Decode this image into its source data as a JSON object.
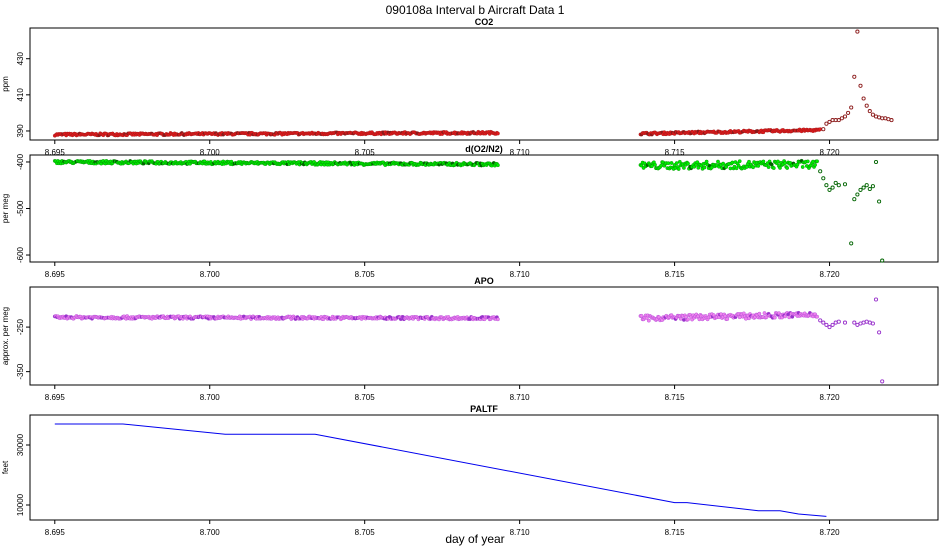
{
  "title": "090108a   Interval b Aircraft Data 1",
  "xlabel": "day of year",
  "x_ticks": [
    "8.695",
    "8.700",
    "8.705",
    "8.710",
    "8.715",
    "8.720"
  ],
  "chart_data": [
    {
      "type": "scatter",
      "title": "CO2",
      "ylabel": "ppm",
      "y_ticks": [
        "390",
        "410",
        "430"
      ],
      "xlim": [
        8.6942,
        8.7235
      ],
      "ylim": [
        385,
        447
      ],
      "colors": {
        "main": "#e41a1c",
        "dark": "#8b1a1a"
      },
      "segments": [
        {
          "x_start": 8.695,
          "x_end": 8.7093,
          "y_start": 388,
          "y_end": 389,
          "noise": 0.6
        },
        {
          "x_start": 8.7139,
          "x_end": 8.7197,
          "y_start": 388.5,
          "y_end": 390.5,
          "noise": 0.6
        }
      ],
      "points": [
        {
          "x": 8.7198,
          "y": 391
        },
        {
          "x": 8.7199,
          "y": 394
        },
        {
          "x": 8.72,
          "y": 395
        },
        {
          "x": 8.7201,
          "y": 396
        },
        {
          "x": 8.7202,
          "y": 396
        },
        {
          "x": 8.7203,
          "y": 396
        },
        {
          "x": 8.7204,
          "y": 397
        },
        {
          "x": 8.7205,
          "y": 398
        },
        {
          "x": 8.7206,
          "y": 400
        },
        {
          "x": 8.7207,
          "y": 403
        },
        {
          "x": 8.7208,
          "y": 420
        },
        {
          "x": 8.7209,
          "y": 445
        },
        {
          "x": 8.721,
          "y": 415
        },
        {
          "x": 8.7211,
          "y": 408
        },
        {
          "x": 8.7212,
          "y": 404
        },
        {
          "x": 8.7213,
          "y": 401
        },
        {
          "x": 8.7214,
          "y": 399
        },
        {
          "x": 8.7215,
          "y": 398
        },
        {
          "x": 8.7216,
          "y": 397.5
        },
        {
          "x": 8.7217,
          "y": 397
        },
        {
          "x": 8.7218,
          "y": 397
        },
        {
          "x": 8.7219,
          "y": 396.5
        },
        {
          "x": 8.722,
          "y": 396
        }
      ]
    },
    {
      "type": "scatter",
      "title": "d(O2/N2)",
      "ylabel": "per meg",
      "y_ticks": [
        "-600",
        "-500",
        "-400"
      ],
      "xlim": [
        8.6942,
        8.7235
      ],
      "ylim": [
        -615,
        -385
      ],
      "colors": {
        "main": "#00ee00",
        "dark": "#006400"
      },
      "segments": [
        {
          "x_start": 8.695,
          "x_end": 8.7093,
          "y_start": -400,
          "y_end": -405,
          "noise": 3
        },
        {
          "x_start": 8.7139,
          "x_end": 8.7196,
          "y_start": -408,
          "y_end": -405,
          "noise": 8
        }
      ],
      "points": [
        {
          "x": 8.7197,
          "y": -420
        },
        {
          "x": 8.7198,
          "y": -435
        },
        {
          "x": 8.7199,
          "y": -450
        },
        {
          "x": 8.72,
          "y": -460
        },
        {
          "x": 8.7201,
          "y": -455
        },
        {
          "x": 8.7202,
          "y": -445
        },
        {
          "x": 8.7203,
          "y": -450
        },
        {
          "x": 8.7205,
          "y": -448
        },
        {
          "x": 8.7207,
          "y": -575
        },
        {
          "x": 8.7208,
          "y": -480
        },
        {
          "x": 8.7209,
          "y": -470
        },
        {
          "x": 8.721,
          "y": -460
        },
        {
          "x": 8.7211,
          "y": -455
        },
        {
          "x": 8.7212,
          "y": -450
        },
        {
          "x": 8.7213,
          "y": -458
        },
        {
          "x": 8.7214,
          "y": -452
        },
        {
          "x": 8.7215,
          "y": -400
        },
        {
          "x": 8.7216,
          "y": -485
        },
        {
          "x": 8.7217,
          "y": -612
        }
      ]
    },
    {
      "type": "scatter",
      "title": "APO",
      "ylabel": "approx. per meg",
      "y_ticks": [
        "-350",
        "-250"
      ],
      "xlim": [
        8.6942,
        8.7235
      ],
      "ylim": [
        -380,
        -160
      ],
      "colors": {
        "main": "#ee82ee",
        "dark": "#9932cc"
      },
      "segments": [
        {
          "x_start": 8.695,
          "x_end": 8.7093,
          "y_start": -228,
          "y_end": -230,
          "noise": 3
        },
        {
          "x_start": 8.7139,
          "x_end": 8.7196,
          "y_start": -230,
          "y_end": -222,
          "noise": 6
        }
      ],
      "points": [
        {
          "x": 8.7197,
          "y": -235
        },
        {
          "x": 8.7198,
          "y": -240
        },
        {
          "x": 8.7199,
          "y": -245
        },
        {
          "x": 8.72,
          "y": -250
        },
        {
          "x": 8.7201,
          "y": -245
        },
        {
          "x": 8.7202,
          "y": -240
        },
        {
          "x": 8.7203,
          "y": -238
        },
        {
          "x": 8.7205,
          "y": -240
        },
        {
          "x": 8.7208,
          "y": -240
        },
        {
          "x": 8.7209,
          "y": -245
        },
        {
          "x": 8.721,
          "y": -242
        },
        {
          "x": 8.7211,
          "y": -240
        },
        {
          "x": 8.7212,
          "y": -238
        },
        {
          "x": 8.7213,
          "y": -240
        },
        {
          "x": 8.7214,
          "y": -242
        },
        {
          "x": 8.7215,
          "y": -188
        },
        {
          "x": 8.7216,
          "y": -262
        },
        {
          "x": 8.7217,
          "y": -372
        }
      ]
    },
    {
      "type": "line",
      "title": "PALTF",
      "ylabel": "feet",
      "y_ticks": [
        "10000",
        "30000"
      ],
      "xlim": [
        8.6942,
        8.7235
      ],
      "ylim": [
        5000,
        40000
      ],
      "colors": {
        "main": "#0000ee"
      },
      "x": [
        8.695,
        8.6972,
        8.7005,
        8.7034,
        8.715,
        8.7154,
        8.7177,
        8.7184,
        8.719,
        8.7199
      ],
      "y": [
        37000,
        37000,
        33600,
        33600,
        10800,
        10800,
        8100,
        8100,
        7000,
        6200
      ]
    }
  ]
}
